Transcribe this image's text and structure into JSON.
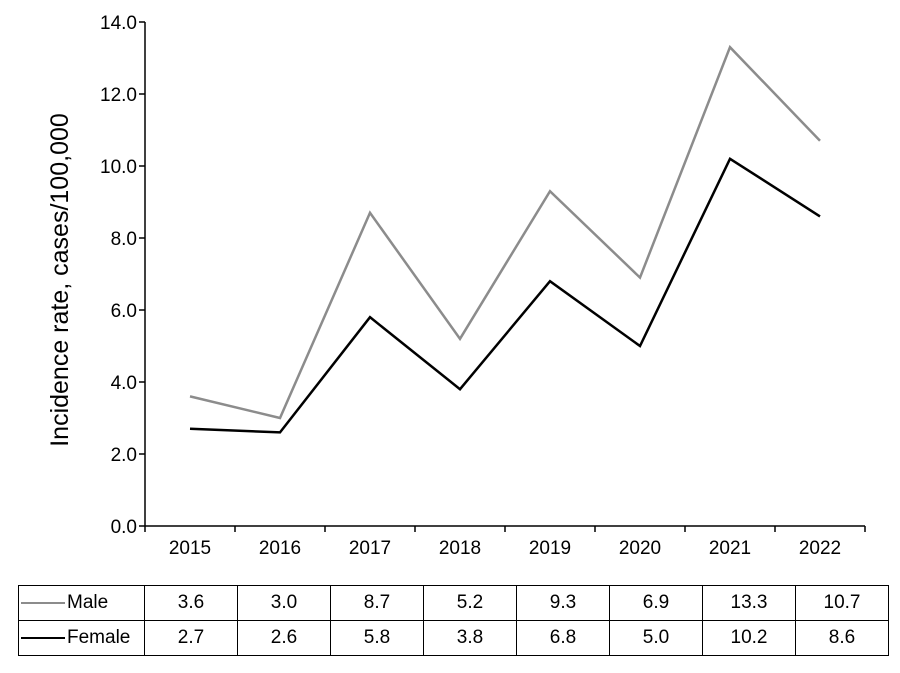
{
  "chart_data": {
    "type": "line",
    "categories": [
      "2015",
      "2016",
      "2017",
      "2018",
      "2019",
      "2020",
      "2021",
      "2022"
    ],
    "series": [
      {
        "name": "Male",
        "color": "#8c8c8c",
        "values": [
          3.6,
          3.0,
          8.7,
          5.2,
          9.3,
          6.9,
          13.3,
          10.7
        ]
      },
      {
        "name": "Female",
        "color": "#000000",
        "values": [
          2.7,
          2.6,
          5.8,
          3.8,
          6.8,
          5.0,
          10.2,
          8.6
        ]
      }
    ],
    "ylabel": "Incidence rate, cases/100,000",
    "xlabel": "",
    "ylim": [
      0,
      14
    ],
    "yticks": [
      "0.0",
      "2.0",
      "4.0",
      "6.0",
      "8.0",
      "10.0",
      "12.0",
      "14.0"
    ],
    "grid": false,
    "legend": "data table below chart",
    "table": {
      "rows": [
        {
          "label": "Male",
          "values": [
            "3.6",
            "3.0",
            "8.7",
            "5.2",
            "9.3",
            "6.9",
            "13.3",
            "10.7"
          ]
        },
        {
          "label": "Female",
          "values": [
            "2.7",
            "2.6",
            "5.8",
            "3.8",
            "6.8",
            "5.0",
            "10.2",
            "8.6"
          ]
        }
      ]
    }
  }
}
